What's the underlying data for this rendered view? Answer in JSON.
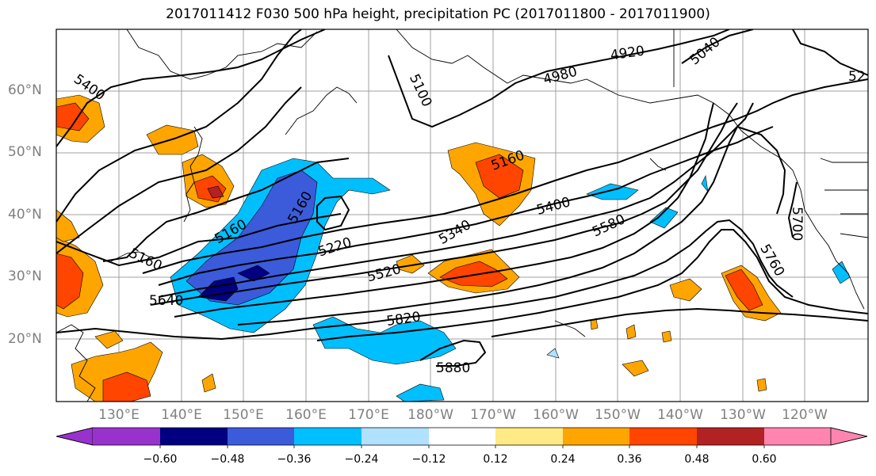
{
  "title": "2017011412 F030 500 hPa height, precipitation PC (2017011800 - 2017011900)",
  "map": {
    "lat_labels": [
      "60°N",
      "50°N",
      "40°N",
      "30°N",
      "20°N"
    ],
    "lon_labels": [
      "130°E",
      "140°E",
      "150°E",
      "160°E",
      "170°E",
      "180°W",
      "170°W",
      "160°W",
      "150°W",
      "140°W",
      "130°W",
      "120°W"
    ],
    "contour_labels": [
      "5400",
      "5100",
      "4980",
      "4920",
      "5040",
      "52",
      "5160",
      "5160",
      "5160",
      "5160",
      "5220",
      "5340",
      "5400",
      "5520",
      "5580",
      "5640",
      "5700",
      "5760",
      "5820",
      "5880"
    ]
  },
  "colorbar": {
    "tick_labels": [
      "−0.60",
      "−0.48",
      "−0.36",
      "−0.24",
      "−0.12",
      "0.12",
      "0.24",
      "0.36",
      "0.48",
      "0.60"
    ],
    "colors": [
      "#9932cc",
      "#000080",
      "#3b5bdb",
      "#00bfff",
      "#b0e2ff",
      "#ffffff",
      "#ffea85",
      "#ffa500",
      "#ff4500",
      "#b22222",
      "#ff85b0"
    ]
  }
}
